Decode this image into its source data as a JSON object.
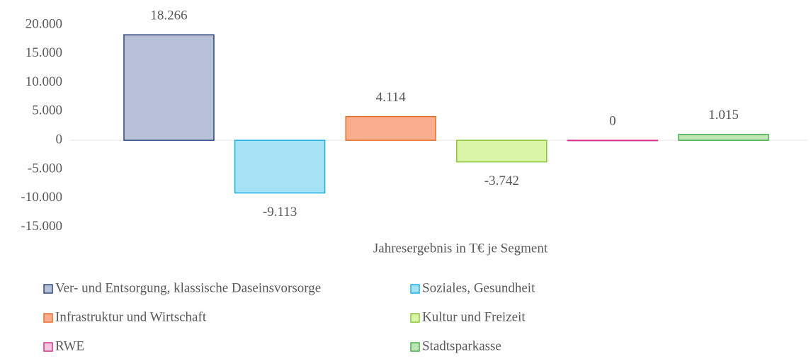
{
  "chart_data": {
    "type": "bar",
    "categories": [
      "Jahresergebnis in T€ je Segment"
    ],
    "series": [
      {
        "name": "Ver- und Entsorgung, klassische Daseinsvorsorge",
        "color": "#b8c0d8",
        "edge_color": "#2f4a78",
        "values": [
          18266
        ],
        "value_labels": [
          "18.266"
        ]
      },
      {
        "name": "Soziales, Gesundheit",
        "color": "#a6e2f6",
        "edge_color": "#1bb0e2",
        "values": [
          -9113
        ],
        "value_labels": [
          "-9.113"
        ]
      },
      {
        "name": "Infrastruktur und Wirtschaft",
        "color": "#f9ad8d",
        "edge_color": "#e8702c",
        "values": [
          4114
        ],
        "value_labels": [
          "4.114"
        ]
      },
      {
        "name": "Kultur und Freizeit",
        "color": "#daf5a6",
        "edge_color": "#8cc63e",
        "values": [
          -3742
        ],
        "value_labels": [
          "-3.742"
        ]
      },
      {
        "name": "RWE",
        "color": "#f6c6e0",
        "edge_color": "#d6308c",
        "values": [
          0
        ],
        "value_labels": [
          "0"
        ]
      },
      {
        "name": "Stadtsparkasse",
        "color": "#bde6b4",
        "edge_color": "#4aae4e",
        "values": [
          1015
        ],
        "value_labels": [
          "1.015"
        ]
      }
    ],
    "ylim": [
      -15000,
      20000
    ],
    "yticks": [
      {
        "value": -15000,
        "label": "-15.000"
      },
      {
        "value": -10000,
        "label": "-10.000"
      },
      {
        "value": -5000,
        "label": "-5.000"
      },
      0,
      {
        "value": 5000,
        "label": "5.000"
      },
      {
        "value": 10000,
        "label": "10.000"
      },
      {
        "value": 15000,
        "label": "15.000"
      },
      {
        "value": 20000,
        "label": "20.000"
      }
    ],
    "grid": false
  }
}
